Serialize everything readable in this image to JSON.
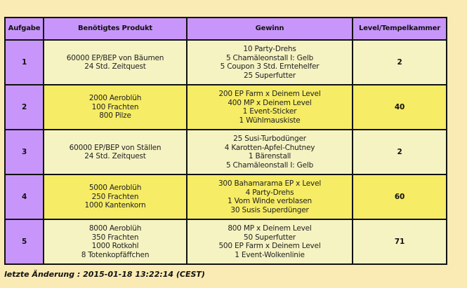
{
  "table": {
    "headers": [
      "Aufgabe",
      "Benötigtes Produkt",
      "Gewinn",
      "Level/Tempelkammer"
    ],
    "rows": [
      {
        "aufgabe": "1",
        "produkt": [
          "60000 EP/BEP von Bäumen",
          "24 Std. Zeitquest"
        ],
        "gewinn": [
          "10 Party-Drehs",
          "5 Chamäleonstall I: Gelb",
          "5 Coupon 3 Std. Erntehelfer",
          "25 Superfutter"
        ],
        "level": "2"
      },
      {
        "aufgabe": "2",
        "produkt": [
          "2000 Aeroblüh",
          "100 Frachten",
          "800 Pilze"
        ],
        "gewinn": [
          "200 EP Farm x Deinem Level",
          "400 MP x Deinem Level",
          "1 Event-Sticker",
          "1 Wühlmauskiste"
        ],
        "level": "40"
      },
      {
        "aufgabe": "3",
        "produkt": [
          "60000 EP/BEP von Ställen",
          "24 Std. Zeitquest"
        ],
        "gewinn": [
          "25 Susi-Turbodünger",
          "4 Karotten-Apfel-Chutney",
          "1 Bärenstall",
          "5 Chamäleonstall I: Gelb"
        ],
        "level": "2"
      },
      {
        "aufgabe": "4",
        "produkt": [
          "5000 Aeroblüh",
          "250 Frachten",
          "1000 Kantenkorn"
        ],
        "gewinn": [
          "300 Bahamarama EP x Level",
          "4 Party-Drehs",
          "1 Vom Winde verblasen",
          "30 Susis Superdünger"
        ],
        "level": "60"
      },
      {
        "aufgabe": "5",
        "produkt": [
          "8000 Aeroblüh",
          "350 Frachten",
          "1000 Rotkohl",
          "8 Totenkopfäffchen"
        ],
        "gewinn": [
          "800 MP x Deinem Level",
          "50 Superfutter",
          "500 EP Farm x Deinem Level",
          "1 Event-Wolkenlinie"
        ],
        "level": "71"
      }
    ]
  },
  "footer": "letzte Änderung : 2015-01-18 13:22:14 (CEST)",
  "colors": {
    "header": "#c896fa",
    "row_pale": "#f5f3c2",
    "row_yellow": "#f6ec66",
    "background": "#faebb4"
  }
}
